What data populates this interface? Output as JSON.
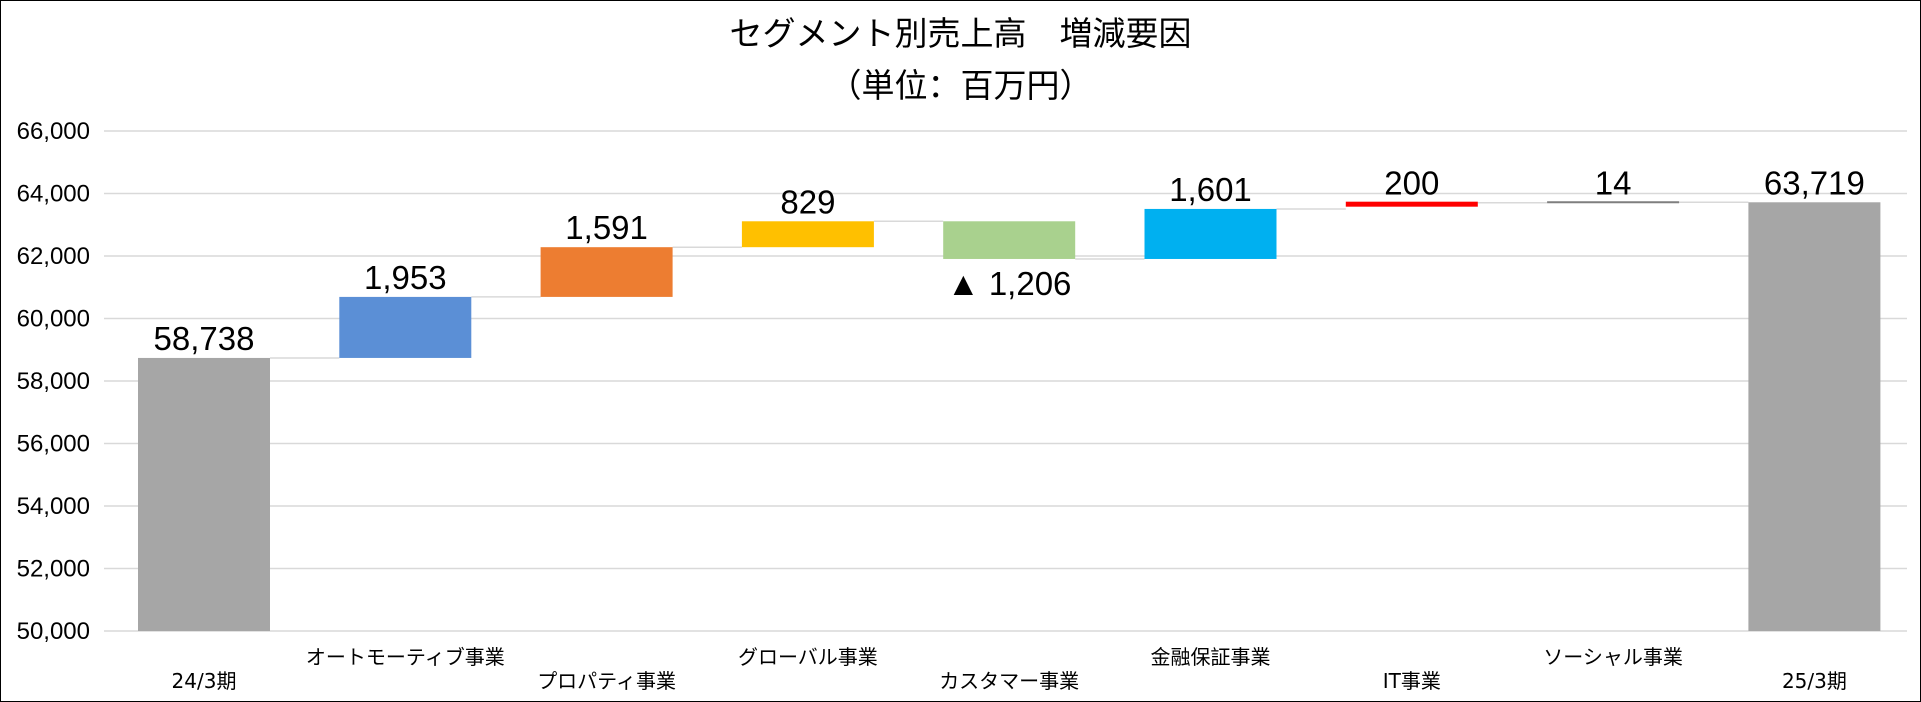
{
  "chart_data": {
    "type": "bar",
    "subtype": "waterfall",
    "title": "セグメント別売上高　増減要因",
    "subtitle": "（単位：百万円）",
    "xlabel": "",
    "ylabel": "",
    "ylim": [
      50000,
      66000
    ],
    "yticks": [
      50000,
      52000,
      54000,
      56000,
      58000,
      60000,
      62000,
      64000,
      66000
    ],
    "ytick_labels": [
      "50,000",
      "52,000",
      "54,000",
      "56,000",
      "58,000",
      "60,000",
      "62,000",
      "64,000",
      "66,000"
    ],
    "grid": true,
    "legend": "none",
    "categories": [
      "24/3期",
      "オートモーティブ事業",
      "プロパティ事業",
      "グローバル事業",
      "カスタマー事業",
      "金融保証事業",
      "IT事業",
      "ソーシャル事業",
      "25/3期"
    ],
    "values": [
      58738,
      1953,
      1591,
      829,
      -1206,
      1601,
      200,
      14,
      63719
    ],
    "kinds": [
      "total",
      "delta",
      "delta",
      "delta",
      "delta",
      "delta",
      "delta",
      "delta",
      "total"
    ],
    "data_labels": [
      "58,738",
      "1,953",
      "1,591",
      "829",
      "▲ 1,206",
      "1,601",
      "200",
      "14",
      "63,719"
    ],
    "colors": [
      "#a6a6a6",
      "#5b8fd6",
      "#ed7d31",
      "#ffc000",
      "#a9d18e",
      "#00b0f0",
      "#ff0000",
      "#7f7f7f",
      "#a6a6a6"
    ]
  }
}
